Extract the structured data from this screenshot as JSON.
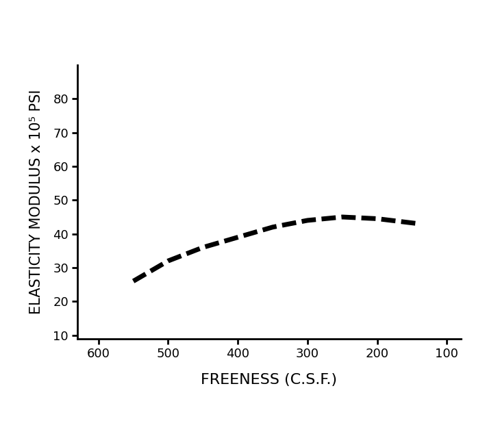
{
  "chart_data": {
    "type": "line",
    "x_label": "FREENESS (C.S.F.)",
    "y_label": "ELASTICITY MODULUS x 10⁵ PSI",
    "x": [
      550,
      500,
      450,
      400,
      350,
      300,
      250,
      200,
      140
    ],
    "values": [
      26,
      32,
      36,
      39,
      42,
      44,
      45,
      44.5,
      43
    ],
    "color": "#000000",
    "line_style": "dashed",
    "xlim": [
      630,
      80
    ],
    "xticks": [
      600,
      500,
      400,
      300,
      200,
      100
    ],
    "ylim": [
      9,
      90
    ],
    "yticks": [
      10,
      20,
      30,
      40,
      50,
      60,
      70,
      80
    ],
    "grid": false
  }
}
